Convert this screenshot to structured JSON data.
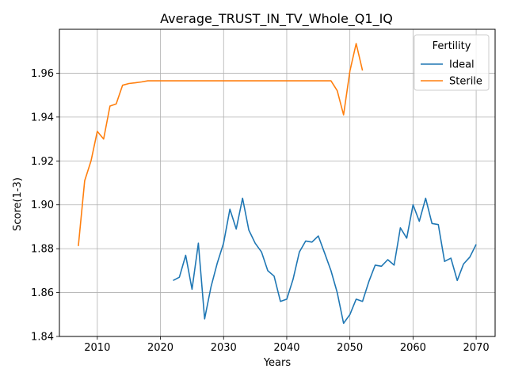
{
  "chart_data": {
    "type": "line",
    "title": "Average_TRUST_IN_TV_Whole_Q1_IQ",
    "xlabel": "Years",
    "ylabel": "Score(1-3)",
    "xlim": [
      2004,
      2073
    ],
    "ylim": [
      1.84,
      1.98
    ],
    "x_ticks": [
      2010,
      2020,
      2030,
      2040,
      2050,
      2060,
      2070
    ],
    "y_ticks": [
      1.84,
      1.86,
      1.88,
      1.9,
      1.92,
      1.94,
      1.96
    ],
    "grid": true,
    "legend": {
      "title": "Fertility",
      "placement": "top-right"
    },
    "series": [
      {
        "name": "Ideal",
        "color": "#1f77b4",
        "x": [
          2022,
          2023,
          2024,
          2025,
          2026,
          2027,
          2028,
          2029,
          2030,
          2031,
          2032,
          2033,
          2034,
          2035,
          2036,
          2037,
          2038,
          2039,
          2040,
          2041,
          2042,
          2043,
          2044,
          2045,
          2046,
          2047,
          2048,
          2049,
          2050,
          2051,
          2052,
          2053,
          2054,
          2055,
          2056,
          2057,
          2058,
          2059,
          2060,
          2061,
          2062,
          2063,
          2064,
          2065,
          2066,
          2067,
          2068,
          2069,
          2070
        ],
        "values": [
          1.8655,
          1.867,
          1.877,
          1.8615,
          1.8825,
          1.848,
          1.8625,
          1.8735,
          1.8825,
          1.898,
          1.889,
          1.903,
          1.8885,
          1.8825,
          1.8785,
          1.87,
          1.8675,
          1.856,
          1.857,
          1.866,
          1.8785,
          1.8835,
          1.883,
          1.8858,
          1.878,
          1.87,
          1.86,
          1.846,
          1.85,
          1.857,
          1.856,
          1.865,
          1.8725,
          1.872,
          1.875,
          1.8725,
          1.8895,
          1.8848,
          1.9,
          1.8925,
          1.903,
          1.8915,
          1.891,
          1.8742,
          1.8757,
          1.8655,
          1.873,
          1.8762,
          1.882
        ]
      },
      {
        "name": "Sterile",
        "color": "#ff7f0e",
        "x": [
          2007,
          2008,
          2009,
          2010,
          2011,
          2012,
          2013,
          2014,
          2015,
          2016,
          2017,
          2018,
          2019,
          2020,
          2021,
          2022,
          2023,
          2024,
          2025,
          2026,
          2027,
          2028,
          2029,
          2030,
          2031,
          2032,
          2033,
          2034,
          2035,
          2036,
          2037,
          2038,
          2039,
          2040,
          2041,
          2042,
          2043,
          2044,
          2045,
          2046,
          2047,
          2048,
          2049,
          2050,
          2051,
          2052
        ],
        "values": [
          1.8812,
          1.911,
          1.92,
          1.9335,
          1.93,
          1.945,
          1.946,
          1.9545,
          1.9553,
          1.9556,
          1.956,
          1.9565,
          1.9565,
          1.9565,
          1.9565,
          1.9565,
          1.9565,
          1.9565,
          1.9565,
          1.9565,
          1.9565,
          1.9565,
          1.9565,
          1.9565,
          1.9565,
          1.9565,
          1.9565,
          1.9565,
          1.9565,
          1.9565,
          1.9565,
          1.9565,
          1.9565,
          1.9565,
          1.9565,
          1.9565,
          1.9565,
          1.9565,
          1.9565,
          1.9565,
          1.9565,
          1.952,
          1.941,
          1.961,
          1.9735,
          1.9612
        ]
      }
    ]
  }
}
